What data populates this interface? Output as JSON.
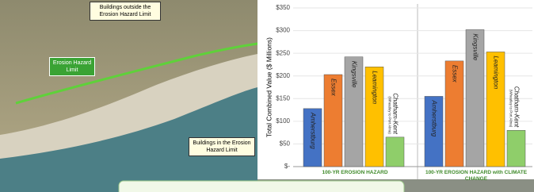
{
  "photo": {
    "annotations": [
      "Buildings outside the Erosion Hazard Limit",
      "Erosion Hazard Limit",
      "Buildings in the Erosion Hazard Limit"
    ]
  },
  "chart_data": {
    "type": "bar",
    "y_label": "Total Combined Value ($ Millions)",
    "categories": [
      "100-YR EROSION HAZARD",
      "100-YR EROSION HAZARD with CLIMATE CHANGE"
    ],
    "series": [
      {
        "name": "Amherstburg",
        "color": "#4472c4",
        "values": [
          128,
          155
        ]
      },
      {
        "name": "Essex",
        "color": "#ed7d31",
        "values": [
          203,
          233
        ]
      },
      {
        "name": "Kingsville",
        "color": "#a5a5a5",
        "values": [
          242,
          302
        ]
      },
      {
        "name": "Leamington",
        "color": "#ffc000",
        "values": [
          220,
          253
        ]
      },
      {
        "name": "Chatham-Kent",
        "sublabel": "(Wheatley to Port Alma)",
        "color": "#8fce6a",
        "values": [
          65,
          80
        ]
      }
    ],
    "ylim": [
      0,
      350
    ],
    "yticks": [
      {
        "value": 0,
        "label": "$-"
      },
      {
        "value": 50,
        "label": "$50"
      },
      {
        "value": 100,
        "label": "$100"
      },
      {
        "value": 150,
        "label": "$150"
      },
      {
        "value": 200,
        "label": "$200"
      },
      {
        "value": 250,
        "label": "$250"
      },
      {
        "value": 300,
        "label": "$300"
      },
      {
        "value": 350,
        "label": "$350"
      }
    ],
    "grid": true
  }
}
